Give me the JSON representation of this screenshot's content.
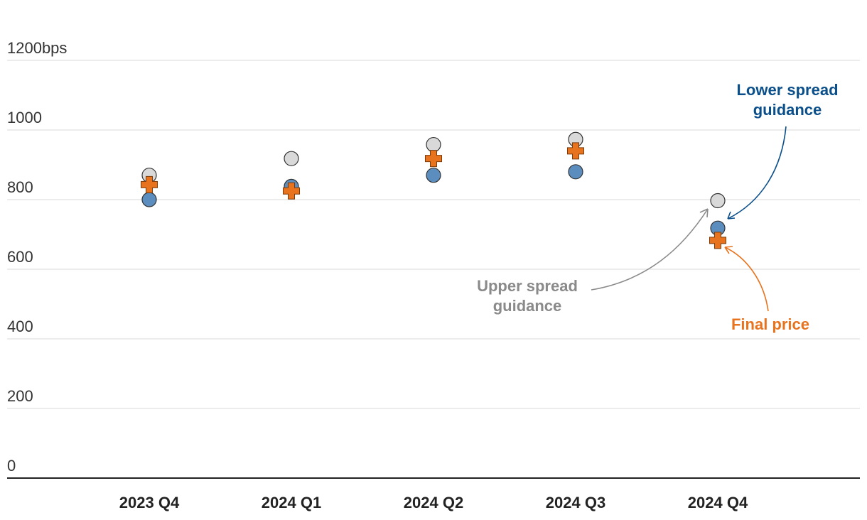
{
  "chart_data": {
    "type": "scatter",
    "categories": [
      "2023 Q4",
      "2024 Q1",
      "2024 Q2",
      "2024 Q3",
      "2024 Q4"
    ],
    "y_ticks": [
      0,
      200,
      400,
      600,
      800,
      1000,
      1200
    ],
    "y_tick_labels": [
      "0",
      "200",
      "400",
      "600",
      "800",
      "1000",
      "1200bps"
    ],
    "ylim": [
      0,
      1200
    ],
    "grid": true,
    "series": [
      {
        "name": "Upper spread guidance",
        "marker": "circle",
        "color": "#d9d9d9",
        "values": [
          870,
          918,
          958,
          973,
          797
        ]
      },
      {
        "name": "Lower spread guidance",
        "marker": "circle",
        "color": "#5b8ebf",
        "values": [
          800,
          838,
          870,
          880,
          718
        ]
      },
      {
        "name": "Final price",
        "marker": "cross",
        "color": "#e8731e",
        "values": [
          843,
          825,
          918,
          940,
          683
        ]
      }
    ],
    "annotations": {
      "lower": {
        "lines": [
          "Lower spread",
          "guidance"
        ],
        "color": "#0b4f8a"
      },
      "upper": {
        "lines": [
          "Upper spread",
          "guidance"
        ],
        "color": "#8a8a8a"
      },
      "final": {
        "lines": [
          "Final price"
        ],
        "color": "#e8731e"
      }
    }
  }
}
